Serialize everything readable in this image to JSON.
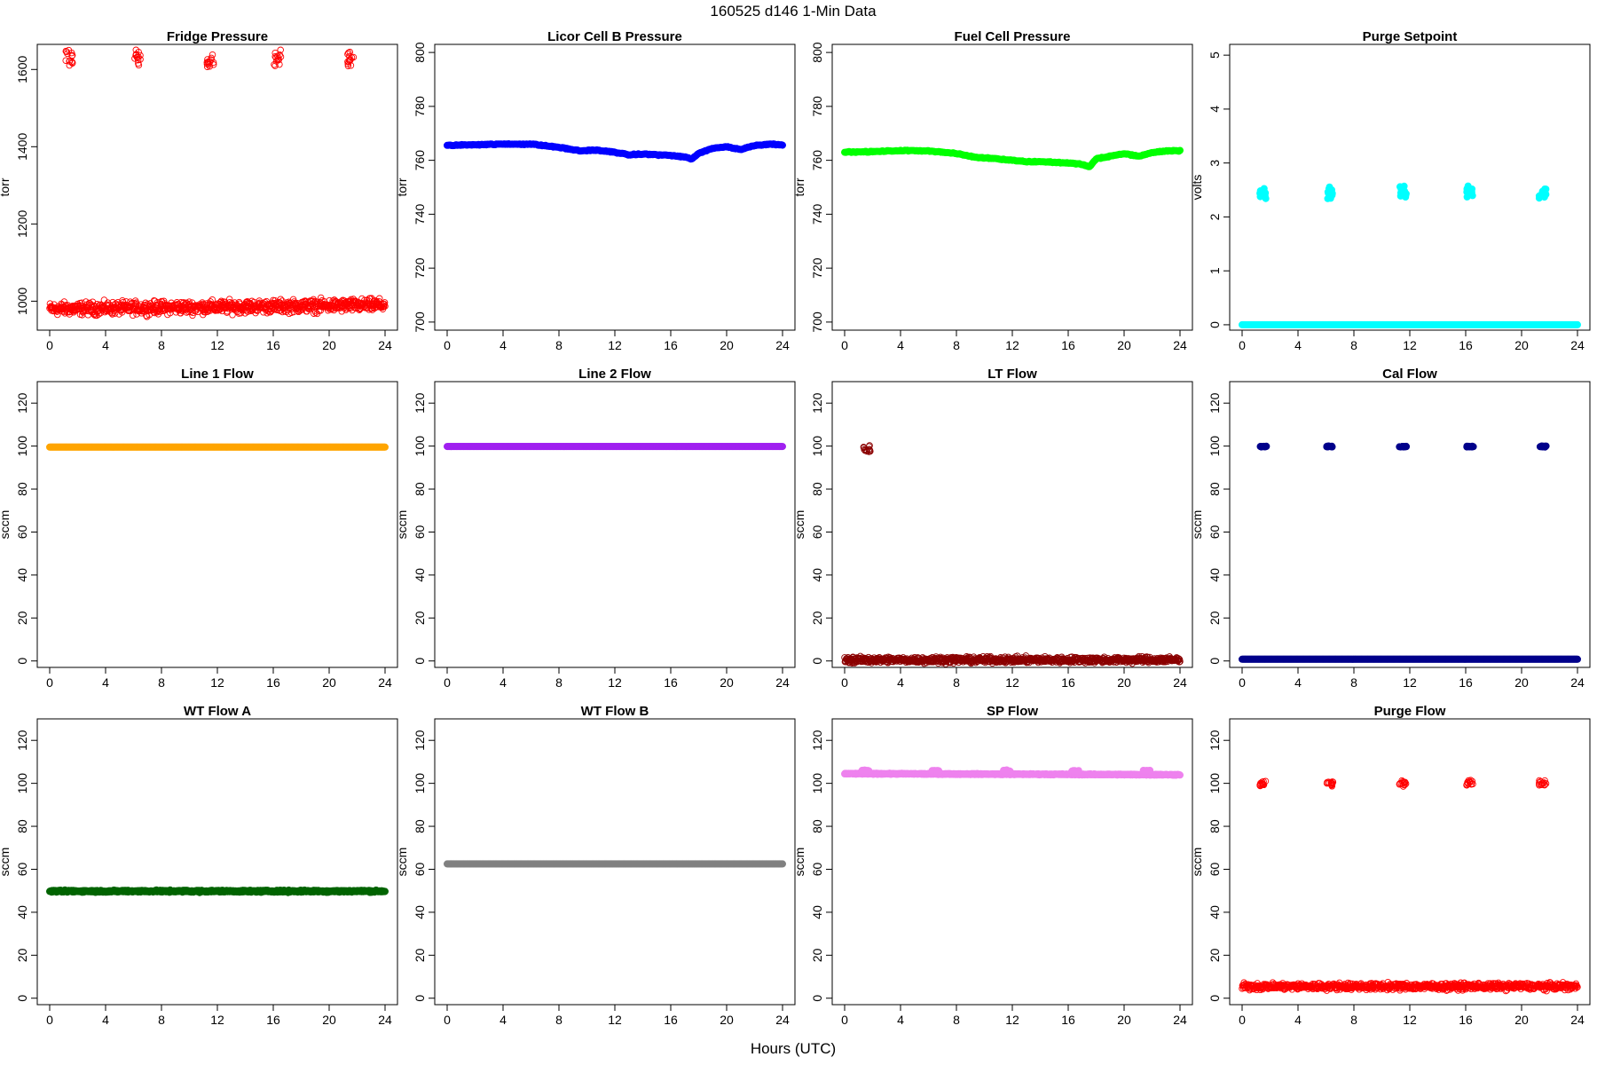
{
  "figure": {
    "title": "160525    d146    1-Min Data",
    "xlabel": "Hours (UTC)"
  },
  "chart_data": [
    {
      "type": "scatter",
      "title": "Fridge Pressure",
      "ylabel": "torr",
      "xlim": [
        0,
        24
      ],
      "ylim": [
        925,
        1665
      ],
      "xticks": [
        0,
        4,
        8,
        12,
        16,
        20,
        24
      ],
      "yticks": [
        1000,
        1200,
        1400,
        1600
      ],
      "marker": "open",
      "color": "#ff0000",
      "series": [
        {
          "kind": "baseline",
          "x_range": [
            0,
            24
          ],
          "y": 980,
          "noise": 14,
          "drift": 10
        },
        {
          "kind": "spikes",
          "x": [
            1.4,
            6.3,
            11.5,
            16.3,
            21.5
          ],
          "y": 1625,
          "spread": 22
        }
      ]
    },
    {
      "type": "scatter",
      "title": "Licor Cell B Pressure",
      "ylabel": "torr",
      "xlim": [
        0,
        24
      ],
      "ylim": [
        697,
        803
      ],
      "xticks": [
        0,
        4,
        8,
        12,
        16,
        20,
        24
      ],
      "yticks": [
        700,
        720,
        740,
        760,
        780,
        800
      ],
      "marker": "filled",
      "color": "#0000ff",
      "series": [
        {
          "kind": "line",
          "x": [
            0,
            2,
            4,
            6,
            8,
            9.5,
            10.5,
            12,
            13,
            14,
            16,
            17,
            17.5,
            18,
            19,
            20,
            21,
            22,
            23,
            24
          ],
          "y": [
            765.5,
            765.8,
            766,
            766,
            764.8,
            763.5,
            763.8,
            763,
            762,
            762.3,
            761.8,
            761.2,
            760.5,
            762.5,
            764.5,
            765,
            764,
            765.5,
            766,
            765.8
          ]
        }
      ]
    },
    {
      "type": "scatter",
      "title": "Fuel Cell Pressure",
      "ylabel": "torr",
      "xlim": [
        0,
        24
      ],
      "ylim": [
        697,
        803
      ],
      "xticks": [
        0,
        4,
        8,
        12,
        16,
        20,
        24
      ],
      "yticks": [
        700,
        720,
        740,
        760,
        780,
        800
      ],
      "marker": "filled",
      "color": "#00ff00",
      "series": [
        {
          "kind": "line",
          "x": [
            0,
            2,
            4,
            6,
            8,
            9.5,
            10.5,
            12,
            13,
            14,
            16,
            17,
            17.5,
            18,
            19,
            20,
            21,
            22,
            23,
            24
          ],
          "y": [
            763,
            763.2,
            763.6,
            763.5,
            762.5,
            761,
            760.8,
            760,
            759.5,
            759.5,
            759,
            758.5,
            757.5,
            760.5,
            761.5,
            762.5,
            761.5,
            762.8,
            763.5,
            763.5
          ]
        }
      ]
    },
    {
      "type": "scatter",
      "title": "Purge Setpoint",
      "ylabel": "volts",
      "xlim": [
        0,
        24
      ],
      "ylim": [
        -0.1,
        5.2
      ],
      "xticks": [
        0,
        4,
        8,
        12,
        16,
        20,
        24
      ],
      "yticks": [
        0,
        1,
        2,
        3,
        4,
        5
      ],
      "marker": "filled",
      "color": "#00ffff",
      "series": [
        {
          "kind": "baseline",
          "x_range": [
            0,
            24
          ],
          "y": 0,
          "noise": 0,
          "drift": 0
        },
        {
          "kind": "spikes",
          "x": [
            1.5,
            6.3,
            11.5,
            16.3,
            21.5
          ],
          "y": 2.45,
          "spread": 0.1
        }
      ]
    },
    {
      "type": "scatter",
      "title": "Line 1 Flow",
      "ylabel": "sccm",
      "xlim": [
        0,
        24
      ],
      "ylim": [
        -3,
        130
      ],
      "xticks": [
        0,
        4,
        8,
        12,
        16,
        20,
        24
      ],
      "yticks": [
        0,
        20,
        40,
        60,
        80,
        100,
        120
      ],
      "marker": "filled",
      "color": "#ffa500",
      "series": [
        {
          "kind": "baseline",
          "x_range": [
            0,
            24
          ],
          "y": 99.5,
          "noise": 0,
          "drift": 0
        }
      ]
    },
    {
      "type": "scatter",
      "title": "Line 2 Flow",
      "ylabel": "sccm",
      "xlim": [
        0,
        24
      ],
      "ylim": [
        -3,
        130
      ],
      "xticks": [
        0,
        4,
        8,
        12,
        16,
        20,
        24
      ],
      "yticks": [
        0,
        20,
        40,
        60,
        80,
        100,
        120
      ],
      "marker": "filled",
      "color": "#a020f0",
      "series": [
        {
          "kind": "baseline",
          "x_range": [
            0,
            24
          ],
          "y": 99.8,
          "noise": 0,
          "drift": 0
        }
      ]
    },
    {
      "type": "scatter",
      "title": "LT Flow",
      "ylabel": "sccm",
      "xlim": [
        0,
        24
      ],
      "ylim": [
        -3,
        130
      ],
      "xticks": [
        0,
        4,
        8,
        12,
        16,
        20,
        24
      ],
      "yticks": [
        0,
        20,
        40,
        60,
        80,
        100,
        120
      ],
      "marker": "open",
      "color": "#8b0000",
      "series": [
        {
          "kind": "baseline",
          "x_range": [
            0,
            24
          ],
          "y": 0.5,
          "noise": 1.2,
          "drift": 0
        },
        {
          "kind": "spikes",
          "x": [
            1.6
          ],
          "y": 99,
          "spread": 1.5
        }
      ]
    },
    {
      "type": "scatter",
      "title": "Cal Flow",
      "ylabel": "sccm",
      "xlim": [
        0,
        24
      ],
      "ylim": [
        -3,
        130
      ],
      "xticks": [
        0,
        4,
        8,
        12,
        16,
        20,
        24
      ],
      "yticks": [
        0,
        20,
        40,
        60,
        80,
        100,
        120
      ],
      "marker": "filled",
      "color": "#00008b",
      "series": [
        {
          "kind": "baseline",
          "x_range": [
            0,
            24
          ],
          "y": 0.8,
          "noise": 0,
          "drift": 0
        },
        {
          "kind": "spikes",
          "x": [
            1.5,
            6.3,
            11.5,
            16.3,
            21.5
          ],
          "y": 99.8,
          "spread": 0.2
        }
      ]
    },
    {
      "type": "scatter",
      "title": "WT Flow A",
      "ylabel": "sccm",
      "xlim": [
        0,
        24
      ],
      "ylim": [
        -3,
        130
      ],
      "xticks": [
        0,
        4,
        8,
        12,
        16,
        20,
        24
      ],
      "yticks": [
        0,
        20,
        40,
        60,
        80,
        100,
        120
      ],
      "marker": "filled",
      "color": "#006400",
      "series": [
        {
          "kind": "baseline",
          "x_range": [
            0,
            24
          ],
          "y": 49.8,
          "noise": 0.4,
          "drift": 0
        }
      ]
    },
    {
      "type": "scatter",
      "title": "WT Flow B",
      "ylabel": "sccm",
      "xlim": [
        0,
        24
      ],
      "ylim": [
        -3,
        130
      ],
      "xticks": [
        0,
        4,
        8,
        12,
        16,
        20,
        24
      ],
      "yticks": [
        0,
        20,
        40,
        60,
        80,
        100,
        120
      ],
      "marker": "filled",
      "color": "#808080",
      "series": [
        {
          "kind": "baseline",
          "x_range": [
            0,
            24
          ],
          "y": 62.5,
          "noise": 0,
          "drift": 0
        }
      ]
    },
    {
      "type": "scatter",
      "title": "SP Flow",
      "ylabel": "sccm",
      "xlim": [
        0,
        24
      ],
      "ylim": [
        -3,
        130
      ],
      "xticks": [
        0,
        4,
        8,
        12,
        16,
        20,
        24
      ],
      "yticks": [
        0,
        20,
        40,
        60,
        80,
        100,
        120
      ],
      "marker": "filled",
      "color": "#ee82ee",
      "series": [
        {
          "kind": "baseline",
          "x_range": [
            0,
            24
          ],
          "y": 104.5,
          "noise": 0.2,
          "drift": -0.5
        },
        {
          "kind": "spikes",
          "x": [
            1.5,
            6.5,
            11.6,
            16.5,
            21.6
          ],
          "y": 105.8,
          "spread": 0.3
        }
      ]
    },
    {
      "type": "scatter",
      "title": "Purge Flow",
      "ylabel": "sccm",
      "xlim": [
        0,
        24
      ],
      "ylim": [
        -3,
        130
      ],
      "xticks": [
        0,
        4,
        8,
        12,
        16,
        20,
        24
      ],
      "yticks": [
        0,
        20,
        40,
        60,
        80,
        100,
        120
      ],
      "marker": "open",
      "color": "#ff0000",
      "series": [
        {
          "kind": "baseline",
          "x_range": [
            0,
            24
          ],
          "y": 5.5,
          "noise": 1.3,
          "drift": 0
        },
        {
          "kind": "spikes",
          "x": [
            1.5,
            6.3,
            11.5,
            16.3,
            21.5
          ],
          "y": 100,
          "spread": 1.2
        }
      ]
    }
  ]
}
